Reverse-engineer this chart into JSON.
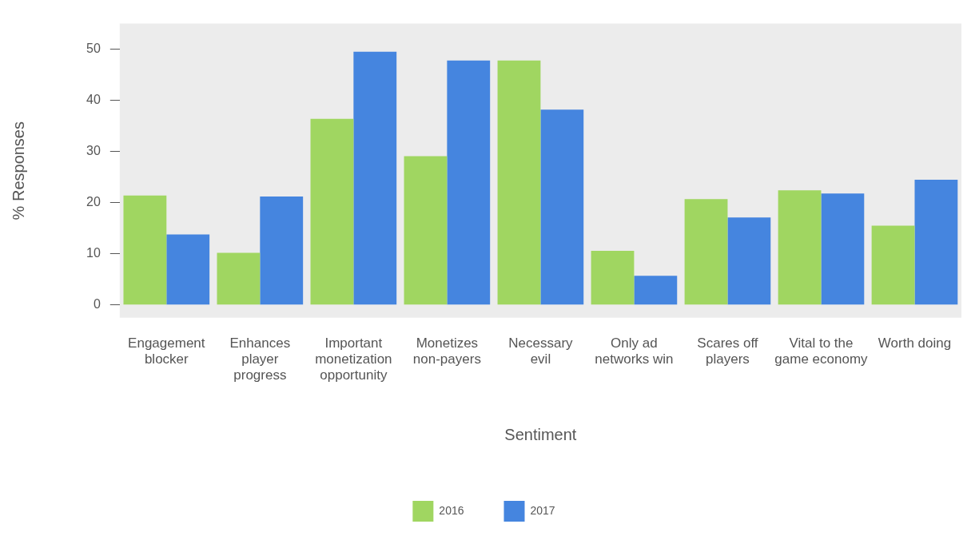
{
  "chart_data": {
    "type": "bar",
    "xlabel": "Sentiment",
    "ylabel": "% Responses",
    "categories": [
      "Engagement blocker",
      "Enhances player progress",
      "Important monetization opportunity",
      "Monetizes non-payers",
      "Necessary evil",
      "Only ad networks win",
      "Scares off players",
      "Vital to the game economy",
      "Worth doing"
    ],
    "series": [
      {
        "name": "2016",
        "color": "#a0d661",
        "values": [
          21.4,
          10.2,
          36.4,
          29.1,
          47.8,
          10.6,
          20.7,
          22.4,
          15.5
        ]
      },
      {
        "name": "2017",
        "color": "#4585df",
        "values": [
          13.8,
          21.2,
          49.5,
          47.8,
          38.2,
          5.7,
          17.1,
          21.8,
          24.5
        ]
      }
    ],
    "ylim": [
      -2.5,
      55
    ],
    "yticks": [
      0,
      10,
      20,
      30,
      40,
      50
    ],
    "grid": false,
    "legend": "bottom"
  }
}
